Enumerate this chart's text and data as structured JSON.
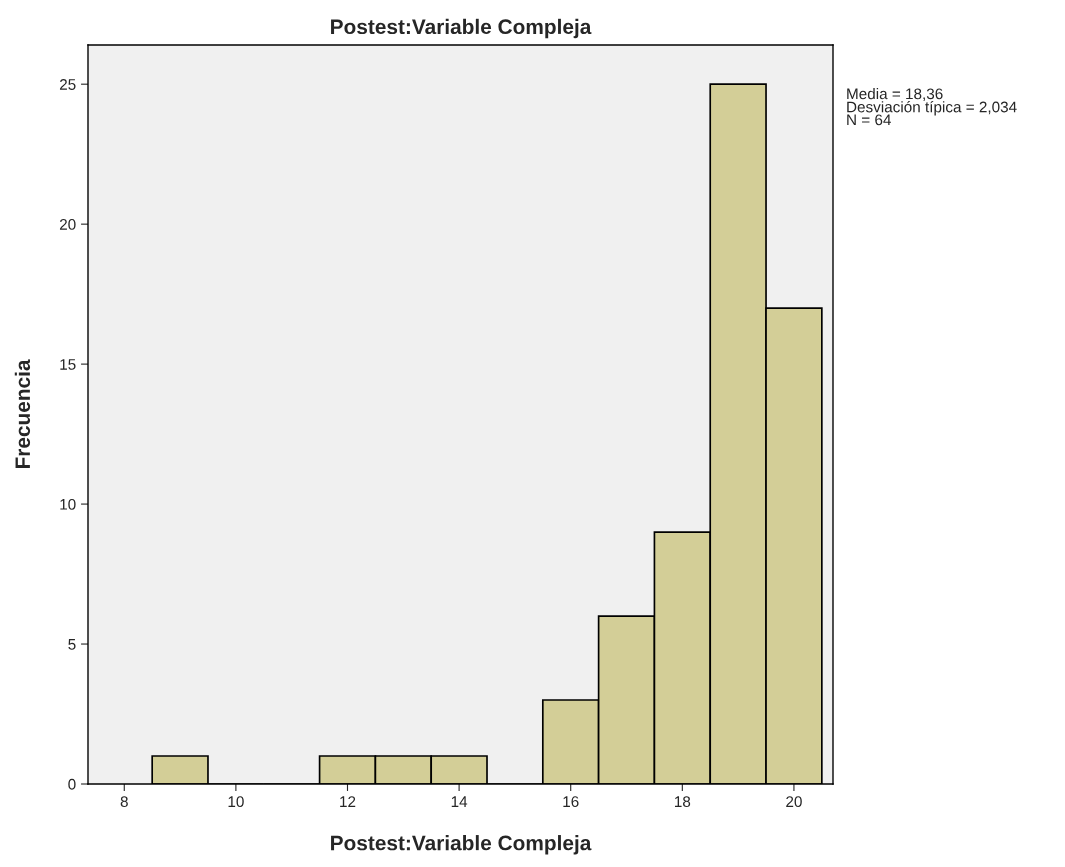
{
  "chart_data": {
    "type": "histogram",
    "title": "Postest:Variable Compleja",
    "xlabel": "Postest:Variable Compleja",
    "ylabel": "Frecuencia",
    "bins": [
      8.5,
      9.5,
      10.5,
      11.5,
      12.5,
      13.5,
      14.5,
      15.5,
      16.5,
      17.5,
      18.5,
      19.5,
      20.5
    ],
    "values": [
      1,
      0,
      0,
      1,
      1,
      1,
      0,
      3,
      6,
      9,
      25,
      17
    ],
    "color": "#d3ce97",
    "xlim": [
      7.35,
      20.7
    ],
    "xticks": [
      8,
      10,
      12,
      14,
      16,
      18,
      20
    ],
    "ylim": [
      0,
      26.4
    ],
    "yticks": [
      0,
      5,
      10,
      15,
      20,
      25
    ],
    "grid": false,
    "annotations": [
      "Media = 18,36",
      "Desviación típica = 2,034",
      "N = 64"
    ]
  }
}
